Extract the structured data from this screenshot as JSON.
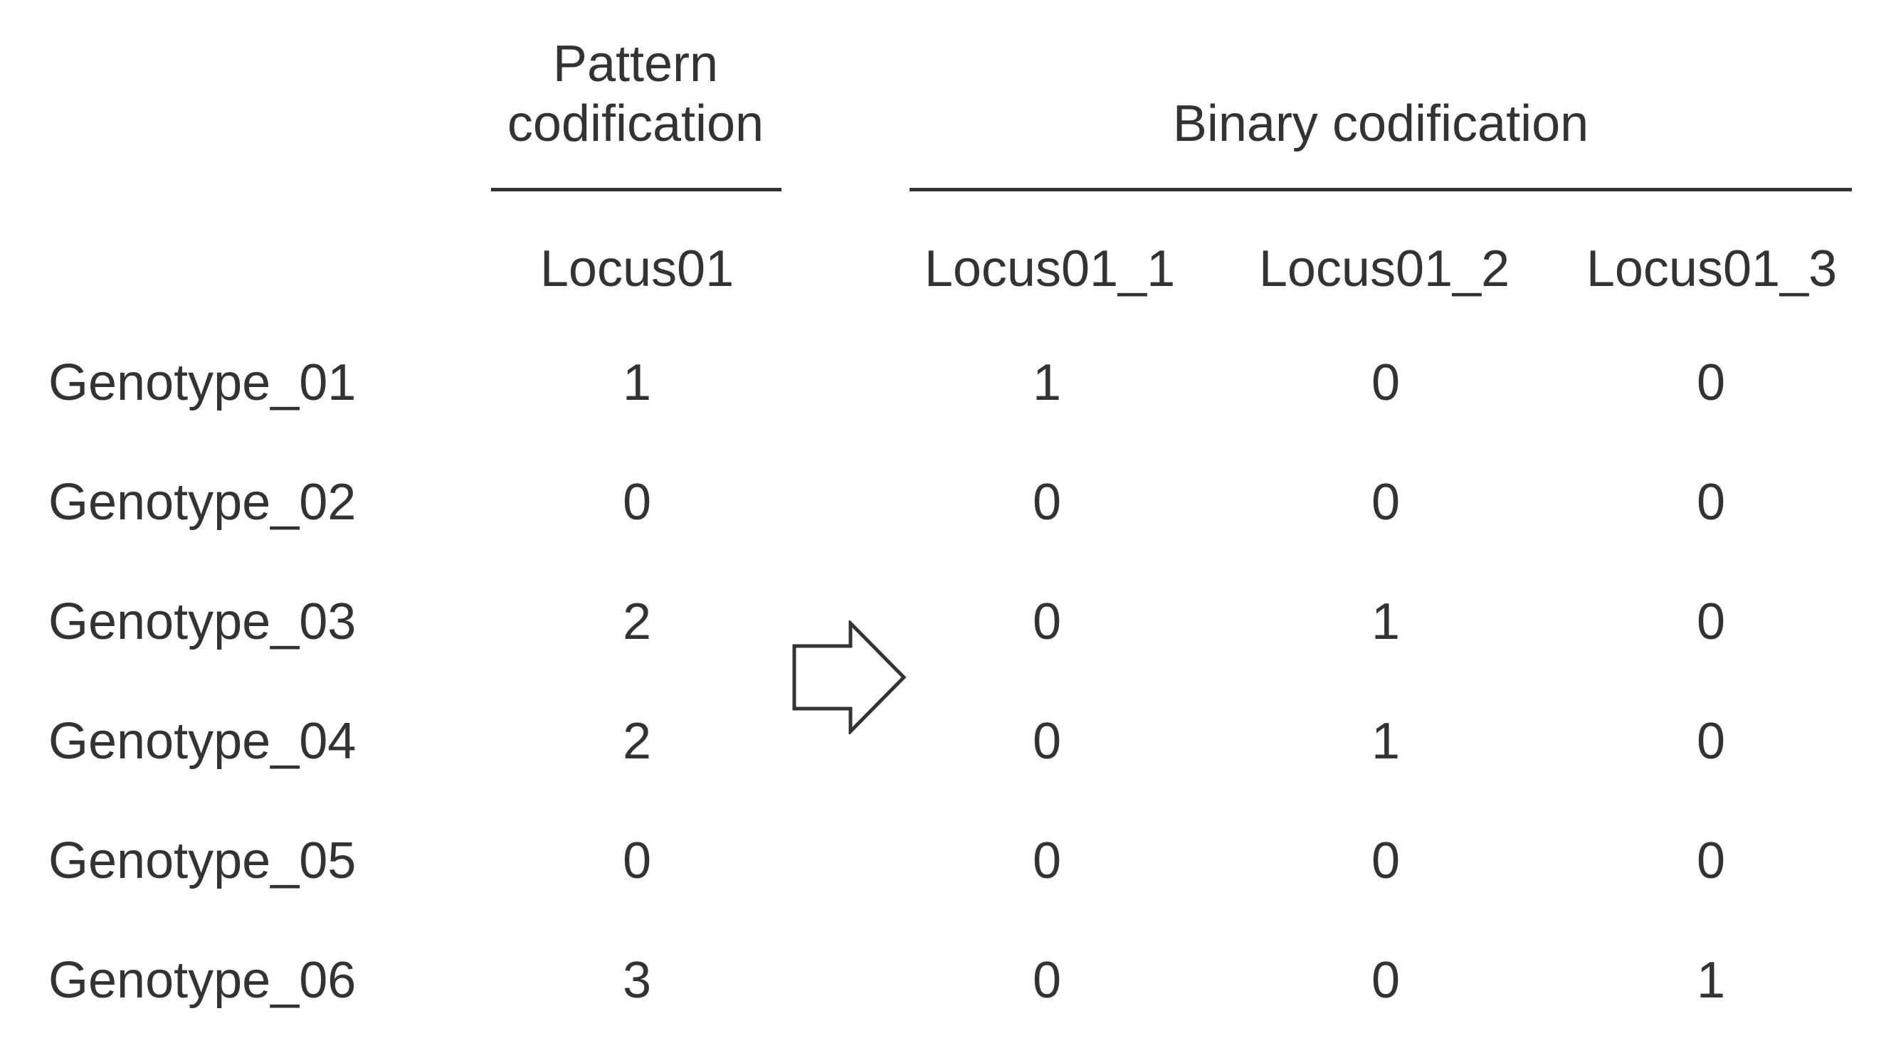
{
  "pattern_group": {
    "title_line1": "Pattern",
    "title_line2": "codification",
    "column": "Locus01"
  },
  "binary_group": {
    "title": "Binary codification",
    "columns": [
      "Locus01_1",
      "Locus01_2",
      "Locus01_3"
    ]
  },
  "rows": [
    {
      "genotype": "Genotype_01",
      "pattern": "1",
      "binary": [
        "1",
        "0",
        "0"
      ]
    },
    {
      "genotype": "Genotype_02",
      "pattern": "0",
      "binary": [
        "0",
        "0",
        "0"
      ]
    },
    {
      "genotype": "Genotype_03",
      "pattern": "2",
      "binary": [
        "0",
        "1",
        "0"
      ]
    },
    {
      "genotype": "Genotype_04",
      "pattern": "2",
      "binary": [
        "0",
        "1",
        "0"
      ]
    },
    {
      "genotype": "Genotype_05",
      "pattern": "0",
      "binary": [
        "0",
        "0",
        "0"
      ]
    },
    {
      "genotype": "Genotype_06",
      "pattern": "3",
      "binary": [
        "0",
        "0",
        "1"
      ]
    }
  ],
  "icons": {
    "arrow": "right-arrow-icon"
  },
  "colors": {
    "text": "#333333",
    "background": "#ffffff"
  }
}
